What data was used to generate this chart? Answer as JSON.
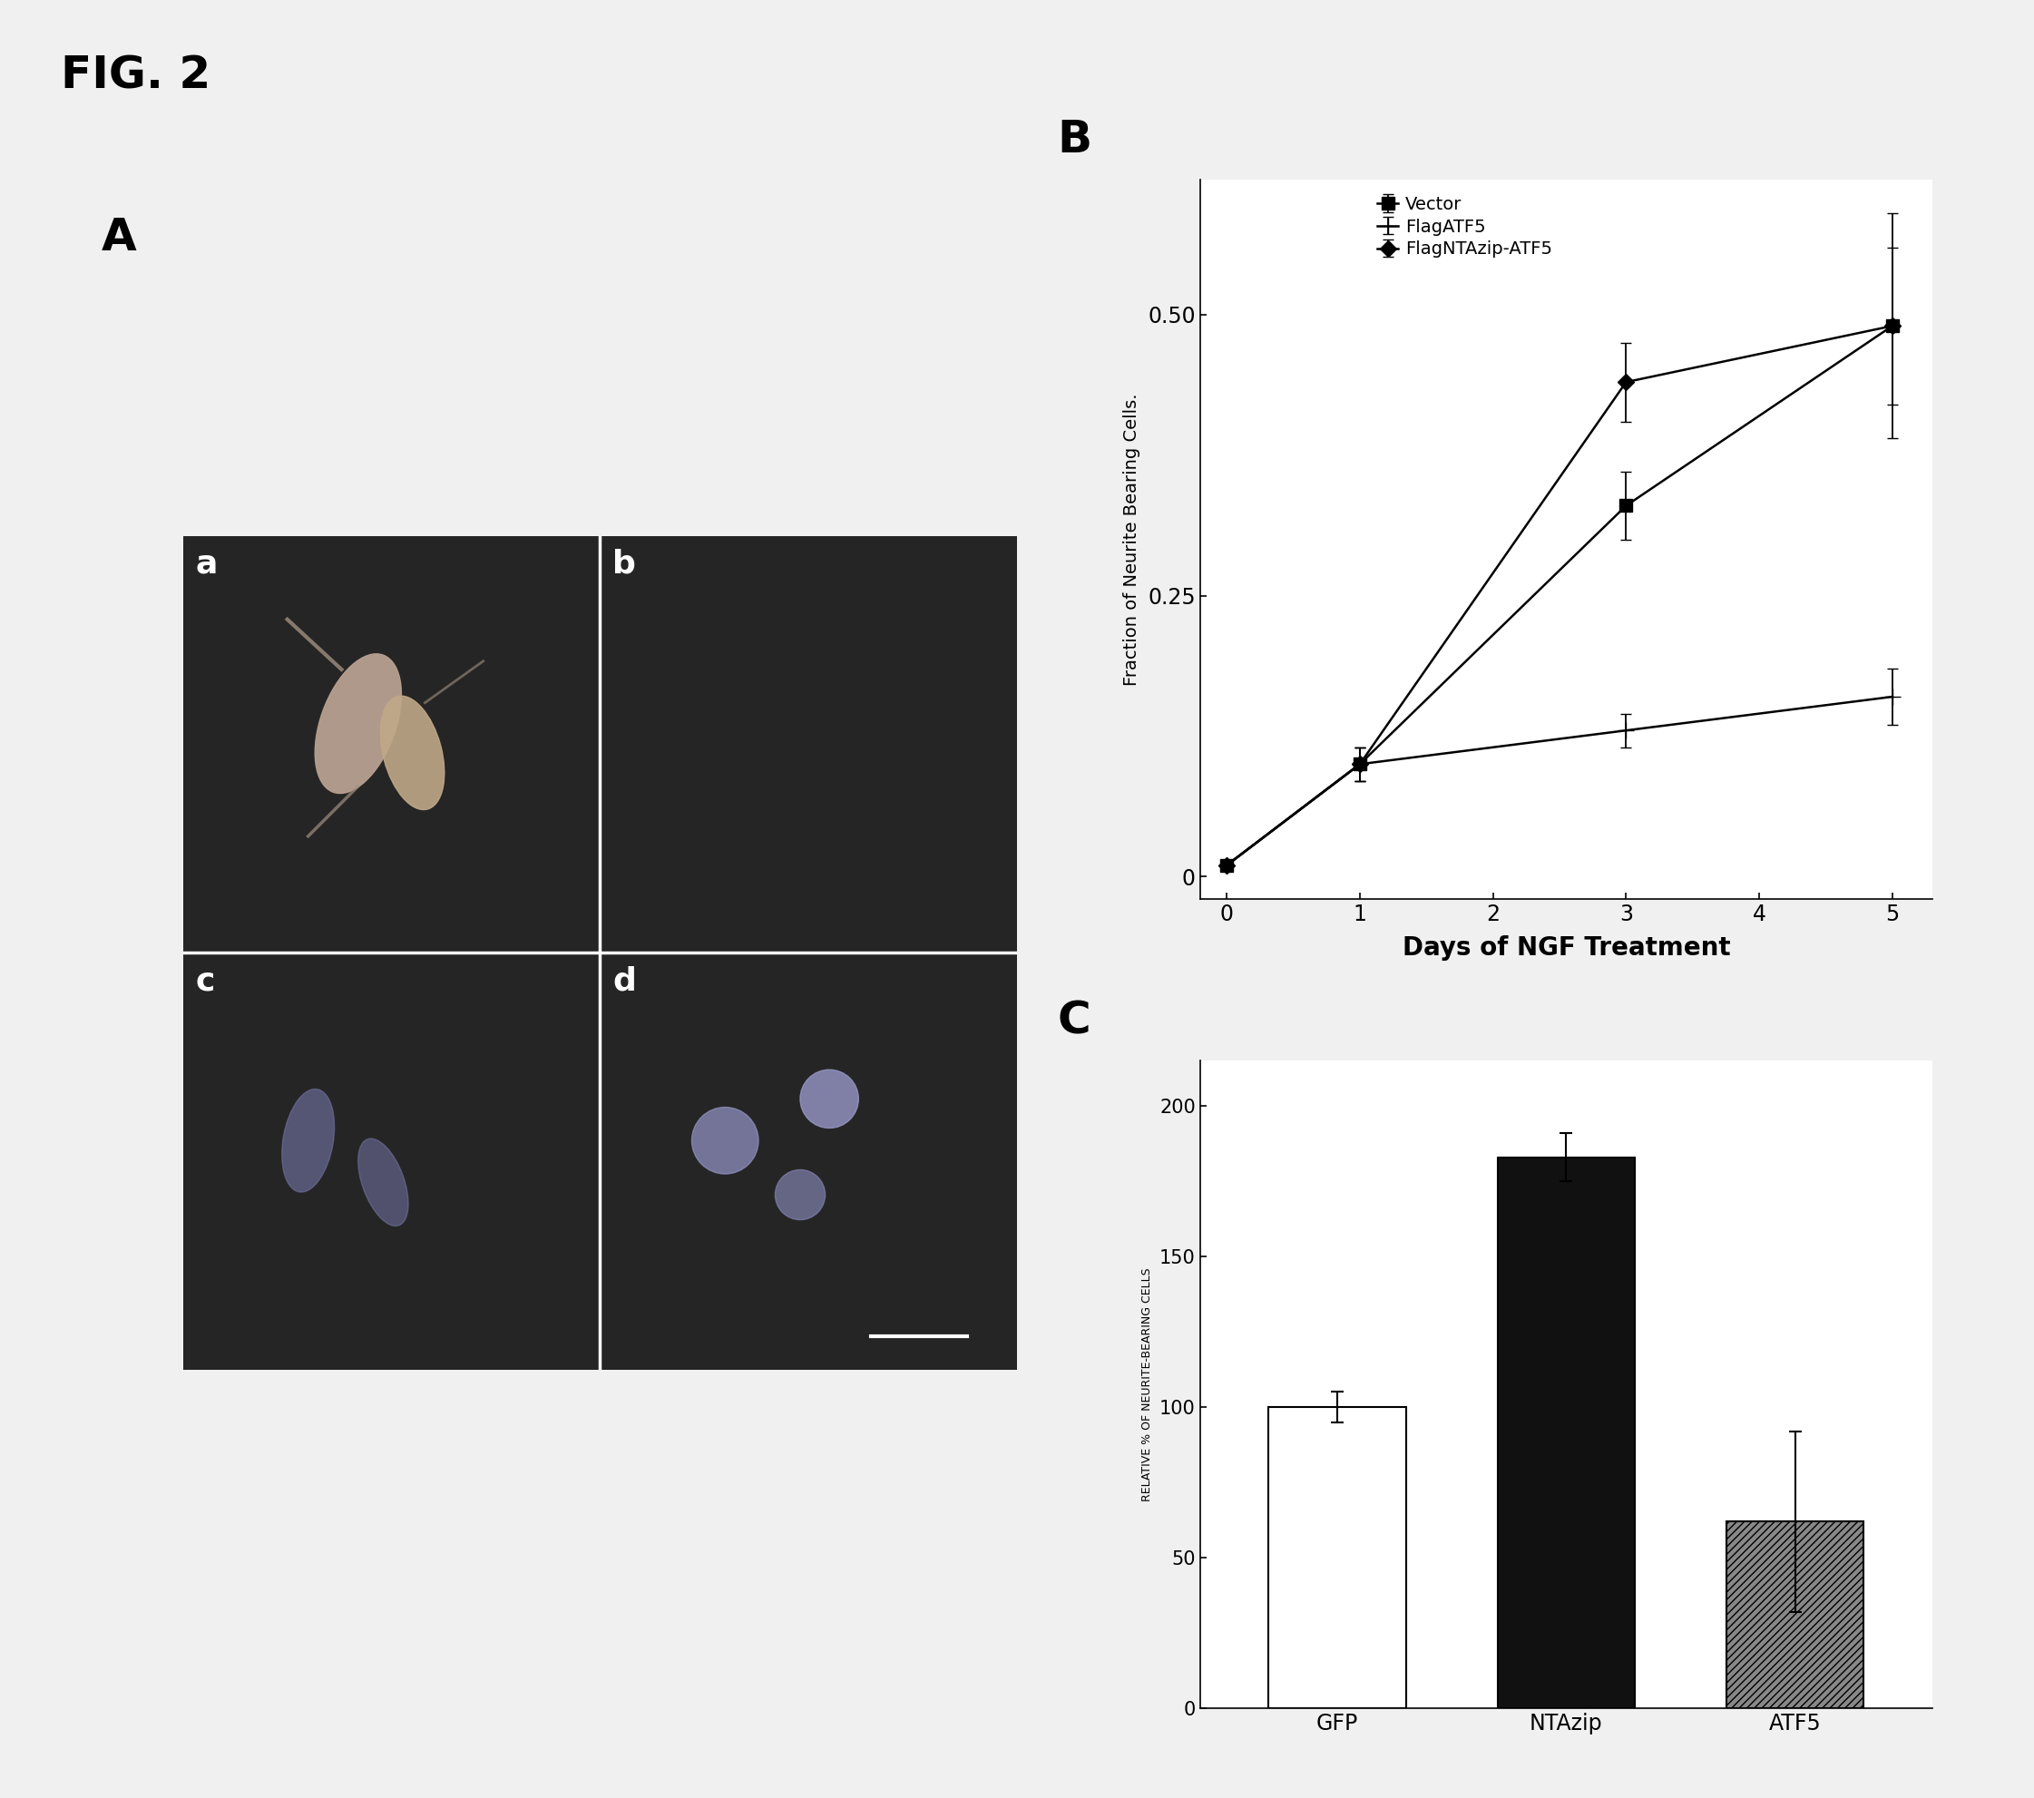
{
  "fig_label": "FIG. 2",
  "panel_A_label": "A",
  "panel_B_label": "B",
  "panel_C_label": "C",
  "quad_labels": [
    "a",
    "b",
    "c",
    "d"
  ],
  "line_chart": {
    "xlabel": "Days of NGF Treatment",
    "ylabel": "Fraction of Neurite Bearing Cells.",
    "x": [
      0,
      1,
      3,
      5
    ],
    "series": [
      {
        "label": "Vector",
        "y": [
          0.01,
          0.1,
          0.33,
          0.49
        ],
        "yerr": [
          0.005,
          0.015,
          0.03,
          0.07
        ],
        "marker": "s",
        "markersize": 10
      },
      {
        "label": "FlagATF5",
        "y": [
          0.01,
          0.1,
          0.13,
          0.16
        ],
        "yerr": [
          0.005,
          0.015,
          0.015,
          0.025
        ],
        "marker": "+",
        "markersize": 13
      },
      {
        "label": "FlagNTAzip-ATF5",
        "y": [
          0.01,
          0.1,
          0.44,
          0.49
        ],
        "yerr": [
          0.005,
          0.015,
          0.035,
          0.1
        ],
        "marker": "D",
        "markersize": 9
      }
    ],
    "yticks": [
      0,
      0.25,
      0.5
    ],
    "xticks": [
      0,
      1,
      2,
      3,
      4,
      5
    ],
    "ylim": [
      -0.02,
      0.62
    ]
  },
  "bar_chart": {
    "categories": [
      "GFP",
      "NTAzip",
      "ATF5"
    ],
    "values": [
      100,
      183,
      62
    ],
    "errors": [
      5,
      8,
      30
    ],
    "ylabel": "RELATIVE % OF NEURITE-BEARING CELLS",
    "yticks": [
      0,
      50,
      100,
      150,
      200
    ],
    "ylim": [
      0,
      215
    ],
    "bar_colors": [
      "white",
      "#111111",
      "#888888"
    ],
    "bar_hatches": [
      null,
      null,
      "////"
    ],
    "edgecolor": "#000000"
  },
  "bg_color": "#f0f0f0",
  "text_color": "#000000",
  "panel_image_bg": "#2a2a2a"
}
